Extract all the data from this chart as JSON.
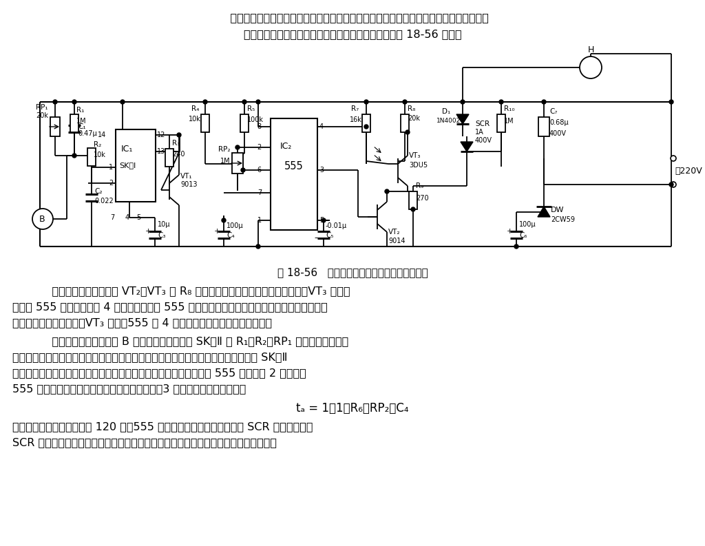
{
  "bg_color": "#ffffff",
  "text_color": "#000000",
  "para1_line1": "    本电路白天处于关断状态，人夜后行人的脚步声便会使电灯自动点亮，节电节能。它包括",
  "para1_line2": "光控开关、声控电路、单稳延时和继电控制电路，如图 18-56 所示。",
  "fig_caption": "图 18-56   声光双控延时照明节电灯电路（三）",
  "para2_line1": "    光控开关由光敏三极管 VT₂、VT₃ 和 R₈ 等组成，白天光照好，光敏管呈低阻，VT₃ 饱和导",
  "para2_line2": "通，将 555 的强制复位端 4 脚置低电位，使 555 处于强制复位状态，输出呈低电位。夜晚光照弱",
  "para2_line3": "或昏黑，光敏管呈高阻，VT₃ 截止，555 的 4 脚呈高电位，处于等待触发状态。",
  "para3_line1": "    声控电路由驻极式话筒 B 和专用声控集成电路 SK－Ⅱ 及 R₁、R₂、RP₁ 等组成。图示电路",
  "para3_line2": "是接成一个定时复位的暂稳态电路。在有行人击掌或有脚步声传来时，话筒拾音开经 SK－Ⅱ",
  "para3_line3": "内部放大、整形，输出标准的声控延时正方波，经倒相加至时基电路 555 的触发端 2 脚。夜晚",
  "para3_line4": "555 处于等待触发状态，一经触发则翻转置位，3 脚输出的暂稳持续时间为",
  "formula": "tₐ = 1．1（R₆＋RP₂）C₄",
  "para4_line1": "图示参数给出的最大延时为 120 秒。555 输出的高电平信号加至可控硅 SCR 的控制板，则",
  "para4_line2": "SCR 触发导通，电灯点亮，暂稳时间到，灯自动熄灭，既能为行人照亮，还节能节电。"
}
